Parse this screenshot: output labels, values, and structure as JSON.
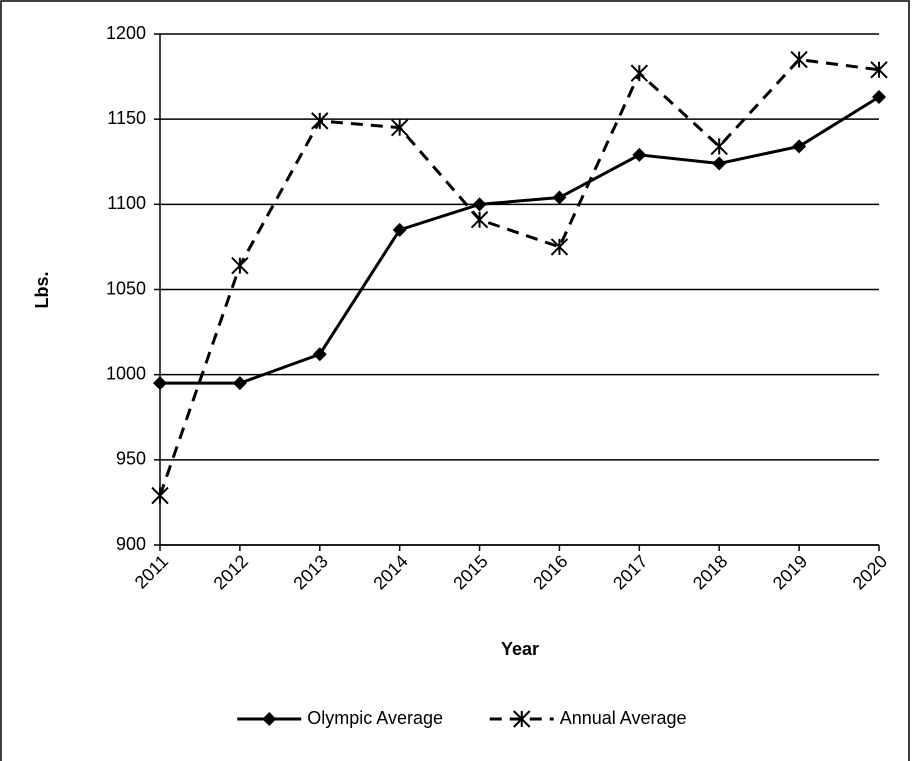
{
  "chart_data": {
    "type": "line",
    "x_label": "Year",
    "y_label": "Lbs.",
    "categories": [
      "2011",
      "2012",
      "2013",
      "2014",
      "2015",
      "2016",
      "2017",
      "2018",
      "2019",
      "2020"
    ],
    "series": [
      {
        "name": "Olympic Average",
        "color": "#000000",
        "line_style": "solid",
        "marker": "diamond",
        "values": [
          995,
          995,
          1012,
          1085,
          1100,
          1104,
          1129,
          1124,
          1134,
          1163
        ]
      },
      {
        "name": "Annual Average",
        "color": "#000000",
        "line_style": "dashed",
        "marker": "asterisk",
        "values": [
          929,
          1064,
          1149,
          1145,
          1091,
          1075,
          1177,
          1134,
          1185,
          1179
        ]
      }
    ],
    "ylim": [
      900,
      1200
    ],
    "yticks": [
      900,
      950,
      1000,
      1050,
      1100,
      1150,
      1200
    ],
    "grid": true,
    "legend": "bottom"
  }
}
